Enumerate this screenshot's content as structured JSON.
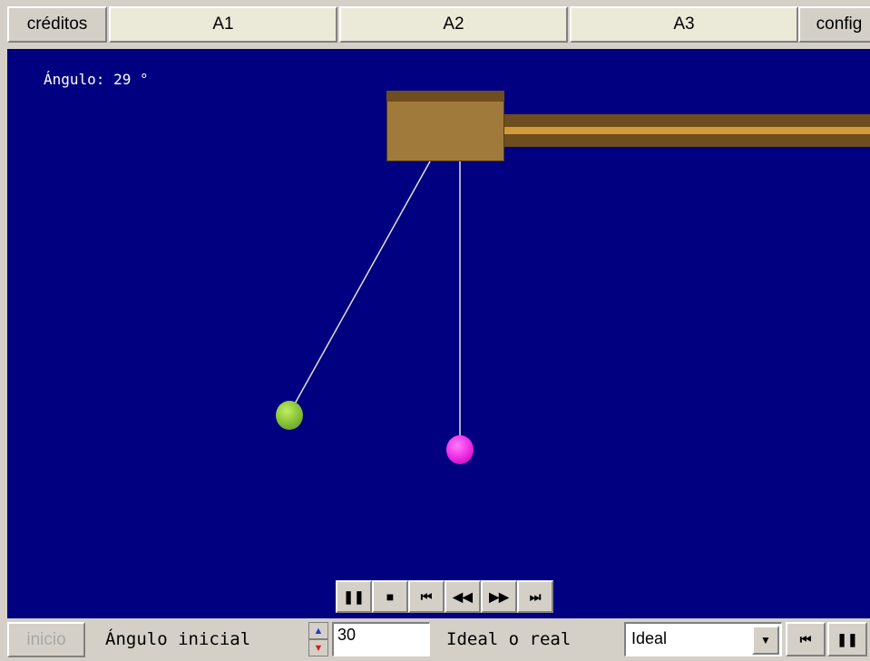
{
  "top_bar": {
    "creditos_label": "créditos",
    "tabs": [
      {
        "label": "A1"
      },
      {
        "label": "A2"
      },
      {
        "label": "A3"
      }
    ],
    "config_label": "config"
  },
  "simulation": {
    "angle_readout": "Ángulo: 29 °",
    "pendulum_left_angle_deg": 29
  },
  "controls": {
    "pause_icon": "pause-icon",
    "stop_icon": "stop-icon",
    "rewind_start_icon": "rewind-to-start-icon",
    "step_back_icon": "step-back-icon",
    "step_forward_icon": "step-forward-icon",
    "forward_end_icon": "forward-to-end-icon"
  },
  "bottom_bar": {
    "inicio_label": "inicio",
    "angulo_inicial_label": "Ángulo inicial",
    "angulo_inicial_value": "30",
    "ideal_o_real_label": "Ideal o real",
    "ideal_selected": "Ideal"
  },
  "colors": {
    "canvas_bg": "#000080",
    "bob_left": "#8cc63f",
    "bob_right": "#f02ce8",
    "beam": "#a07a3a"
  }
}
